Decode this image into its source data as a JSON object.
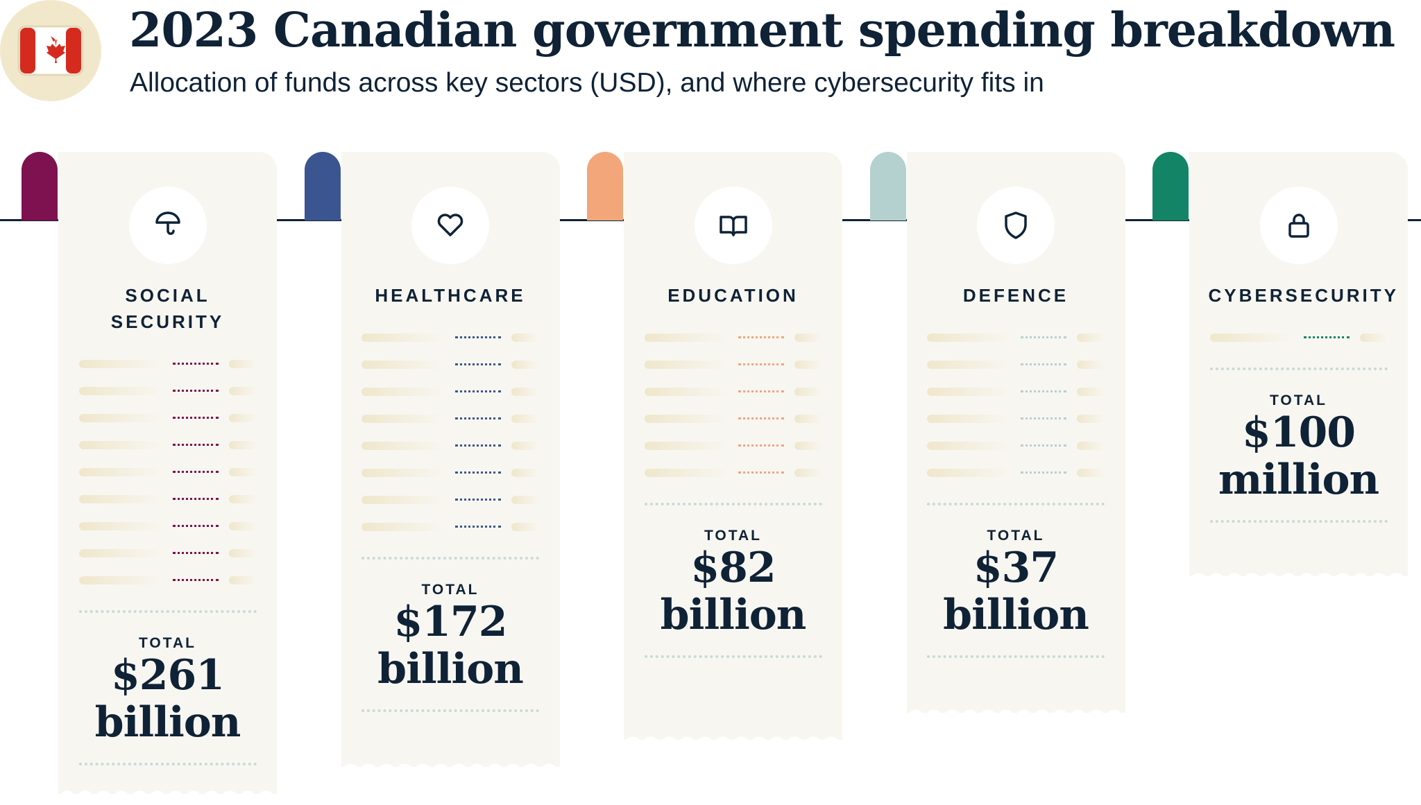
{
  "header": {
    "title": "2023 Canadian government spending breakdown",
    "subtitle": "Allocation of funds across key sectors (USD), and where cybersecurity fits in"
  },
  "sectors": [
    {
      "label": "SOCIAL SECURITY",
      "total_label": "TOTAL",
      "amount": "$261",
      "unit": "billion",
      "color": "#7e1150"
    },
    {
      "label": "HEALTHCARE",
      "total_label": "TOTAL",
      "amount": "$172",
      "unit": "billion",
      "color": "#3b5591"
    },
    {
      "label": "EDUCATION",
      "total_label": "TOTAL",
      "amount": "$82",
      "unit": "billion",
      "color": "#f2a679"
    },
    {
      "label": "DEFENCE",
      "total_label": "TOTAL",
      "amount": "$37",
      "unit": "billion",
      "color": "#b5d1cf"
    },
    {
      "label": "CYBERSECURITY",
      "total_label": "TOTAL",
      "amount": "$100",
      "unit": "million",
      "color": "#138566"
    }
  ]
}
